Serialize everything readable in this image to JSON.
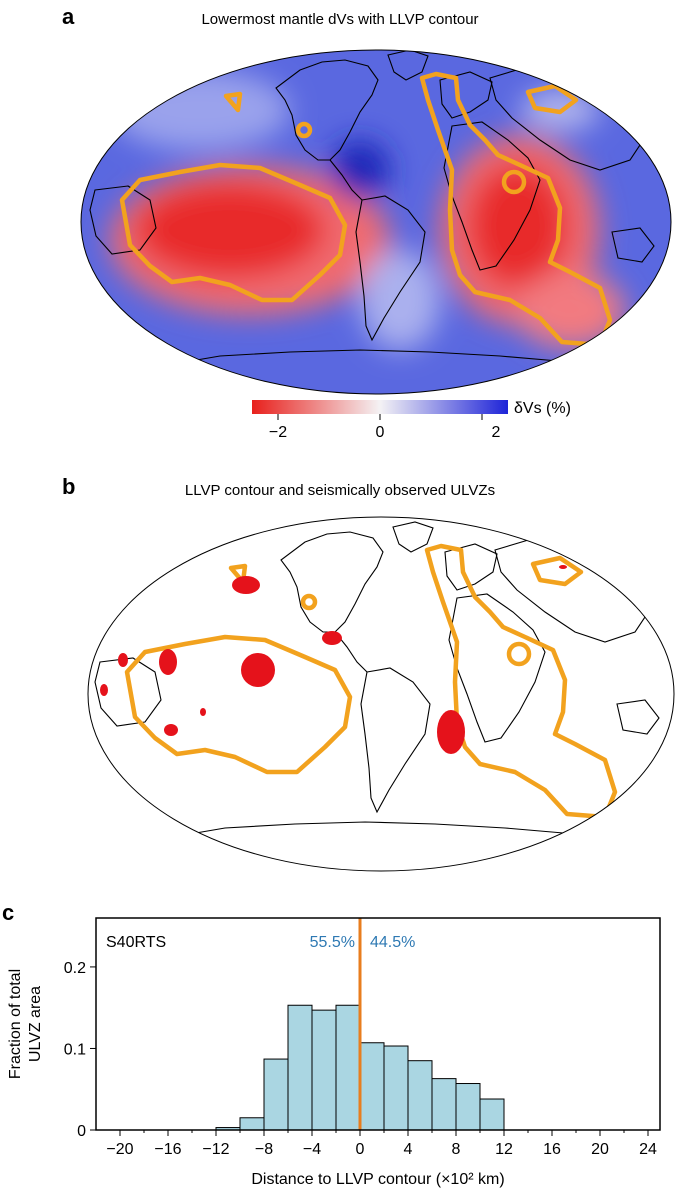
{
  "panel_a": {
    "letter": "a",
    "title": "Lowermost mantle dVs with LLVP contour",
    "colorbar": {
      "label": "δVs (%)",
      "ticks": [
        "−2",
        "0",
        "2"
      ],
      "range": [
        -2.5,
        2.5
      ],
      "colors": {
        "low": "#e8201c",
        "mid": "#f4f2f4",
        "high": "#1e24d8"
      }
    }
  },
  "panel_b": {
    "letter": "b",
    "title": "LLVP contour and seismically observed ULVZs"
  },
  "colors": {
    "llvp_contour": "#f2a21e",
    "ulvz": "#e5121b",
    "coastline": "#000000",
    "bars": "#aad6e2",
    "divider": "#e87d1e",
    "percent_text": "#2e79b3"
  },
  "panel_c": {
    "letter": "c",
    "model_label": "S40RTS",
    "left_percent": "55.5%",
    "right_percent": "44.5%"
  },
  "chart_data": {
    "type": "bar",
    "xlabel": "Distance to LLVP contour (×10² km)",
    "ylabel_line1": "Fraction of total",
    "ylabel_line2": "ULVZ area",
    "xlim": [
      -22,
      25
    ],
    "ylim": [
      0,
      0.26
    ],
    "xticks": [
      -20,
      -16,
      -12,
      -8,
      -4,
      0,
      4,
      8,
      12,
      16,
      20,
      24
    ],
    "xtick_labels": [
      "−20",
      "−16",
      "−12",
      "−8",
      "−4",
      "0",
      "4",
      "8",
      "12",
      "16",
      "20",
      "24"
    ],
    "yticks": [
      0,
      0.1,
      0.2
    ],
    "ytick_labels": [
      "0",
      "0.1",
      "0.2"
    ],
    "bin_width": 2,
    "bin_left_edges": [
      -12,
      -10,
      -8,
      -6,
      -4,
      -2,
      0,
      2,
      4,
      6,
      8,
      10
    ],
    "values": [
      0.003,
      0.015,
      0.087,
      0.153,
      0.147,
      0.153,
      0.107,
      0.103,
      0.085,
      0.063,
      0.057,
      0.038
    ],
    "divider_x": 0,
    "grid": false
  }
}
